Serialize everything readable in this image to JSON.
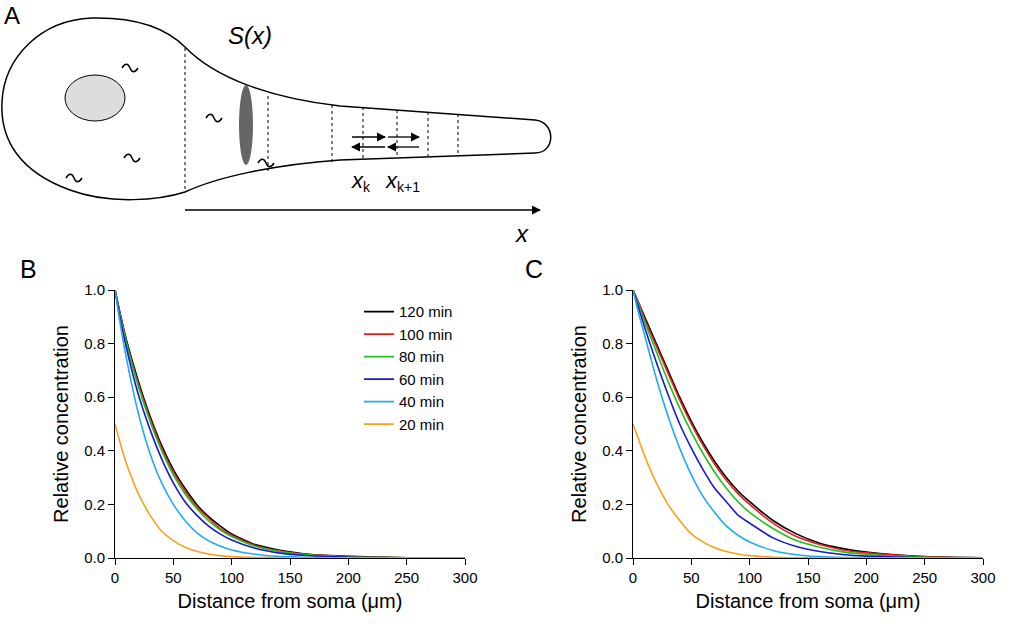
{
  "panel_a": {
    "letter": "A",
    "area_label": "S(x)",
    "positions": [
      {
        "text": "x",
        "subscript": "k"
      },
      {
        "text": "x",
        "subscript": "k+1"
      }
    ],
    "axis_label": "x"
  },
  "chart_data": [
    {
      "type": "line",
      "title": "B",
      "x_label": "Distance from soma (μm)",
      "y_label": "Relative concentration",
      "x": [
        0,
        5,
        10,
        20,
        30,
        40,
        50,
        60,
        70,
        80,
        90,
        100,
        120,
        140,
        160,
        180,
        200,
        250,
        300
      ],
      "series": [
        {
          "name": "120 min",
          "color": "#000000",
          "values": [
            1.0,
            0.9,
            0.81,
            0.66,
            0.53,
            0.42,
            0.33,
            0.26,
            0.2,
            0.155,
            0.12,
            0.09,
            0.05,
            0.03,
            0.017,
            0.01,
            0.006,
            0.001,
            0
          ]
        },
        {
          "name": "100 min",
          "color": "#ee1c1c",
          "values": [
            1.0,
            0.9,
            0.8,
            0.65,
            0.52,
            0.41,
            0.32,
            0.25,
            0.19,
            0.15,
            0.11,
            0.085,
            0.047,
            0.027,
            0.015,
            0.009,
            0.005,
            0.001,
            0
          ]
        },
        {
          "name": "80 min",
          "color": "#1fc21f",
          "values": [
            1.0,
            0.89,
            0.8,
            0.64,
            0.51,
            0.4,
            0.31,
            0.24,
            0.185,
            0.14,
            0.105,
            0.08,
            0.044,
            0.025,
            0.014,
            0.008,
            0.004,
            0.001,
            0
          ]
        },
        {
          "name": "60 min",
          "color": "#1a1acc",
          "values": [
            1.0,
            0.88,
            0.78,
            0.61,
            0.48,
            0.37,
            0.28,
            0.21,
            0.16,
            0.12,
            0.09,
            0.067,
            0.036,
            0.019,
            0.01,
            0.005,
            0.003,
            0,
            0
          ]
        },
        {
          "name": "40 min",
          "color": "#22aaee",
          "values": [
            1.0,
            0.86,
            0.74,
            0.54,
            0.39,
            0.28,
            0.2,
            0.14,
            0.095,
            0.065,
            0.045,
            0.03,
            0.014,
            0.006,
            0.003,
            0.001,
            0,
            0,
            0
          ]
        },
        {
          "name": "20 min",
          "color": "#f7a21b",
          "values": [
            0.5,
            0.42,
            0.35,
            0.24,
            0.16,
            0.1,
            0.065,
            0.04,
            0.025,
            0.015,
            0.009,
            0.005,
            0.002,
            0.001,
            0,
            0,
            0,
            0,
            0
          ]
        }
      ],
      "xlim": [
        0,
        300
      ],
      "xticks": [
        0,
        50,
        100,
        150,
        200,
        250,
        300
      ],
      "ylim": [
        0,
        1
      ],
      "yticks": [
        {
          "value": 0,
          "label": "0.0"
        },
        0.2,
        0.4,
        0.6,
        0.8,
        {
          "value": 1,
          "label": "1.0"
        }
      ],
      "grid": false,
      "legend": "top right"
    },
    {
      "type": "line",
      "title": "C",
      "x_label": "Distance from soma (μm)",
      "y_label": "Relative concentration",
      "x": [
        0,
        5,
        10,
        20,
        30,
        40,
        50,
        60,
        70,
        80,
        90,
        100,
        120,
        140,
        160,
        180,
        200,
        250,
        300
      ],
      "series": [
        {
          "name": "120 min",
          "color": "#000000",
          "values": [
            1.0,
            0.95,
            0.9,
            0.8,
            0.7,
            0.6,
            0.51,
            0.43,
            0.36,
            0.3,
            0.25,
            0.21,
            0.14,
            0.09,
            0.055,
            0.035,
            0.022,
            0.005,
            0.001
          ]
        },
        {
          "name": "100 min",
          "color": "#ee1c1c",
          "values": [
            1.0,
            0.95,
            0.89,
            0.79,
            0.69,
            0.59,
            0.5,
            0.42,
            0.35,
            0.29,
            0.24,
            0.2,
            0.13,
            0.08,
            0.05,
            0.03,
            0.019,
            0.004,
            0.001
          ]
        },
        {
          "name": "80 min",
          "color": "#1fc21f",
          "values": [
            1.0,
            0.94,
            0.88,
            0.77,
            0.66,
            0.56,
            0.47,
            0.39,
            0.32,
            0.26,
            0.21,
            0.17,
            0.11,
            0.065,
            0.04,
            0.023,
            0.014,
            0.003,
            0
          ]
        },
        {
          "name": "60 min",
          "color": "#1a1acc",
          "values": [
            1.0,
            0.93,
            0.86,
            0.73,
            0.61,
            0.5,
            0.41,
            0.33,
            0.26,
            0.21,
            0.16,
            0.13,
            0.075,
            0.043,
            0.024,
            0.013,
            0.007,
            0.001,
            0
          ]
        },
        {
          "name": "40 min",
          "color": "#22aaee",
          "values": [
            1.0,
            0.91,
            0.83,
            0.67,
            0.53,
            0.41,
            0.31,
            0.23,
            0.17,
            0.12,
            0.085,
            0.06,
            0.028,
            0.012,
            0.005,
            0.002,
            0.001,
            0,
            0
          ]
        },
        {
          "name": "20 min",
          "color": "#f7a21b",
          "values": [
            0.5,
            0.44,
            0.38,
            0.28,
            0.2,
            0.14,
            0.09,
            0.06,
            0.038,
            0.024,
            0.015,
            0.009,
            0.003,
            0.001,
            0,
            0,
            0,
            0,
            0
          ]
        }
      ],
      "xlim": [
        0,
        300
      ],
      "xticks": [
        0,
        50,
        100,
        150,
        200,
        250,
        300
      ],
      "ylim": [
        0,
        1
      ],
      "yticks": [
        {
          "value": 0,
          "label": "0.0"
        },
        0.2,
        0.4,
        0.6,
        0.8,
        {
          "value": 1,
          "label": "1.0"
        }
      ],
      "grid": false
    }
  ]
}
